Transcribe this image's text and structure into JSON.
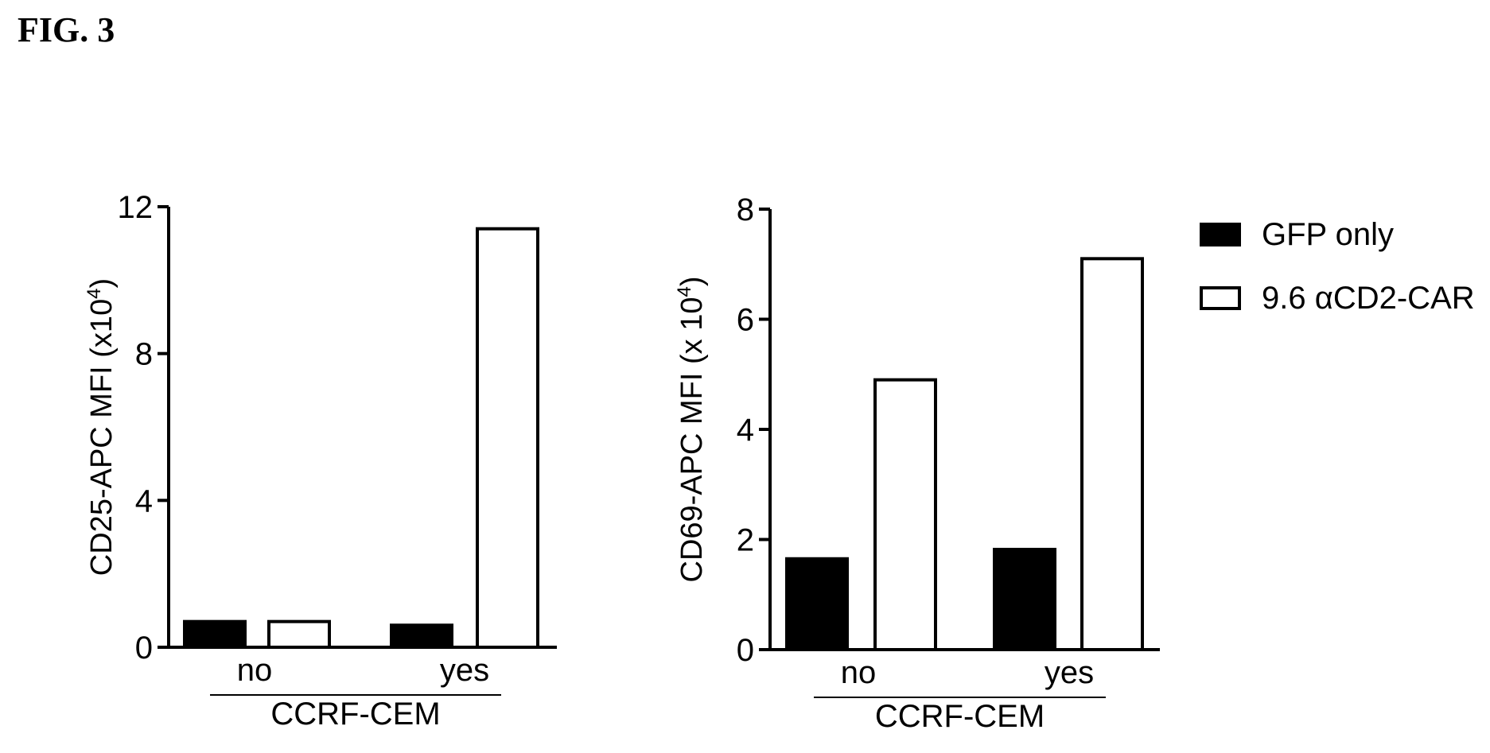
{
  "figure_label": "FIG. 3",
  "legend": {
    "items": [
      {
        "label": "GFP only",
        "fill": "#000000"
      },
      {
        "label": "9.6 αCD2-CAR",
        "fill": "#ffffff"
      }
    ]
  },
  "chart_data": [
    {
      "type": "bar",
      "ylabel_main": "CD25-APC MFI (x10",
      "ylabel_exp": "4",
      "ylabel_close": ")",
      "ylim": [
        0,
        12
      ],
      "yticks": [
        "0",
        "4",
        "8",
        "12"
      ],
      "categories": [
        "no",
        "yes"
      ],
      "group_label": "CCRF-CEM",
      "series": [
        {
          "name": "GFP only",
          "values": [
            0.7,
            0.6
          ]
        },
        {
          "name": "9.6 αCD2-CAR",
          "values": [
            0.7,
            11.4
          ]
        }
      ]
    },
    {
      "type": "bar",
      "ylabel_main": "CD69-APC MFI (x 10",
      "ylabel_exp": "4",
      "ylabel_close": ")",
      "ylim": [
        0,
        8
      ],
      "yticks": [
        "0",
        "2",
        "4",
        "6",
        "8"
      ],
      "categories": [
        "no",
        "yes"
      ],
      "group_label": "CCRF-CEM",
      "series": [
        {
          "name": "GFP only",
          "values": [
            1.65,
            1.82
          ]
        },
        {
          "name": "9.6 αCD2-CAR",
          "values": [
            4.9,
            7.1
          ]
        }
      ]
    }
  ]
}
